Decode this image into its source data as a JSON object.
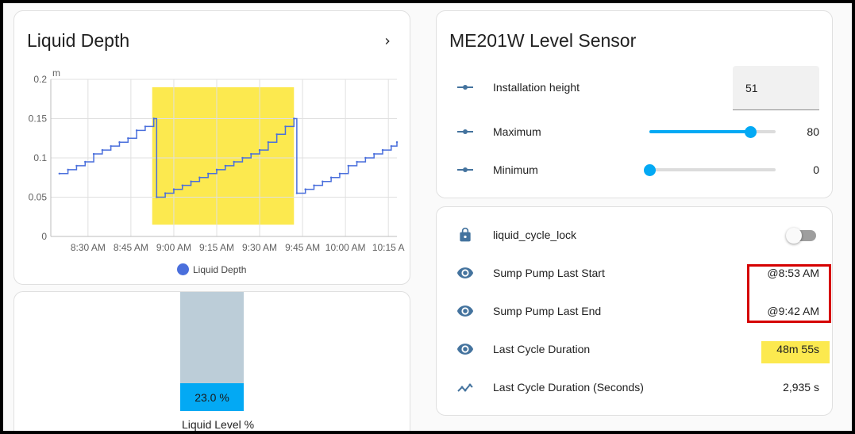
{
  "colors": {
    "accent": "#03a9f4",
    "series_line": "#4a6fdc",
    "highlight_yellow": "#fce94f",
    "highlight_red": "#d50000",
    "icon": "#44739e"
  },
  "depth_card": {
    "title": "Liquid Depth",
    "more_icon": "chevron-right-icon"
  },
  "chart_data": {
    "type": "line",
    "ylabel": "m",
    "ylim": [
      0,
      0.2
    ],
    "yticks": [
      "0",
      "0.05",
      "0.1",
      "0.15",
      "0.2"
    ],
    "xtick_labels": [
      "8:30 AM",
      "8:45 AM",
      "9:00 AM",
      "9:15 AM",
      "9:30 AM",
      "9:45 AM",
      "10:00 AM",
      "10:15 A"
    ],
    "grid": true,
    "legend": "bottom",
    "series": [
      {
        "name": "Liquid Depth",
        "x": [
          "8:20 AM",
          "8:23 AM",
          "8:26 AM",
          "8:29 AM",
          "8:32 AM",
          "8:35 AM",
          "8:38 AM",
          "8:41 AM",
          "8:44 AM",
          "8:47 AM",
          "8:50 AM",
          "8:53 AM",
          "8:54 AM",
          "8:57 AM",
          "9:00 AM",
          "9:03 AM",
          "9:06 AM",
          "9:09 AM",
          "9:12 AM",
          "9:15 AM",
          "9:18 AM",
          "9:21 AM",
          "9:24 AM",
          "9:27 AM",
          "9:30 AM",
          "9:33 AM",
          "9:36 AM",
          "9:39 AM",
          "9:42 AM",
          "9:43 AM",
          "9:46 AM",
          "9:49 AM",
          "9:52 AM",
          "9:55 AM",
          "9:58 AM",
          "10:01 AM",
          "10:04 AM",
          "10:07 AM",
          "10:10 AM",
          "10:13 AM",
          "10:16 AM",
          "10:18 AM"
        ],
        "y": [
          0.08,
          0.085,
          0.09,
          0.095,
          0.105,
          0.11,
          0.115,
          0.12,
          0.125,
          0.135,
          0.14,
          0.15,
          0.05,
          0.055,
          0.06,
          0.065,
          0.07,
          0.075,
          0.08,
          0.085,
          0.09,
          0.095,
          0.1,
          0.105,
          0.11,
          0.12,
          0.13,
          0.14,
          0.15,
          0.055,
          0.06,
          0.065,
          0.07,
          0.075,
          0.08,
          0.09,
          0.095,
          0.1,
          0.105,
          0.11,
          0.115,
          0.12
        ]
      }
    ],
    "highlight_range": [
      "8:53 AM",
      "9:42 AM"
    ]
  },
  "level_card": {
    "value_text": "23.0 %",
    "value_percent": 23.0,
    "caption": "Liquid Level %"
  },
  "sensor_card": {
    "title": "ME201W Level Sensor",
    "rows": [
      {
        "icon": "ray-vertex-icon",
        "label": "Installation height",
        "value": "51"
      },
      {
        "icon": "ray-vertex-icon",
        "label": "Maximum",
        "value": "80",
        "slider_fraction": 0.8
      },
      {
        "icon": "ray-vertex-icon",
        "label": "Minimum",
        "value": "0",
        "slider_fraction": 0.0
      }
    ]
  },
  "status_card": {
    "rows": [
      {
        "icon": "lock-icon",
        "label": "liquid_cycle_lock",
        "toggle_on": false
      },
      {
        "icon": "eye-icon",
        "label": "Sump Pump Last Start",
        "value": "@8:53 AM"
      },
      {
        "icon": "eye-icon",
        "label": "Sump Pump Last End",
        "value": "@9:42 AM"
      },
      {
        "icon": "eye-icon",
        "label": "Last Cycle Duration",
        "value": "48m 55s"
      },
      {
        "icon": "chart-line-variant-icon",
        "label": "Last Cycle Duration (Seconds)",
        "value": "2,935 s"
      }
    ]
  }
}
